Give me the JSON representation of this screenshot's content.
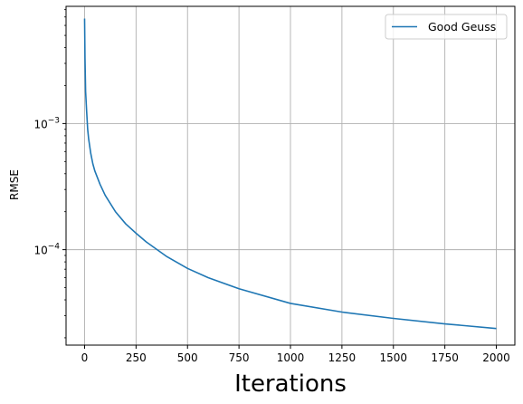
{
  "chart_data": {
    "type": "line",
    "title": "",
    "xlabel": "Iterations",
    "ylabel": "RMSE",
    "yscale": "log",
    "xlim": [
      -90,
      2090
    ],
    "ylim": [
      1.75e-05,
      0.0085
    ],
    "grid": true,
    "legend": {
      "placement": "upper-right",
      "entries": [
        "Good Geuss"
      ]
    },
    "colors": {
      "series": "#1f77b4",
      "grid": "#b0b0b0"
    },
    "x_ticks": [
      0,
      250,
      500,
      750,
      1000,
      1250,
      1500,
      1750,
      2000
    ],
    "x_tick_labels": [
      "0",
      "250",
      "500",
      "750",
      "1000",
      "1250",
      "1500",
      "1750",
      "2000"
    ],
    "y_ticks": [
      0.0001,
      0.001
    ],
    "y_tick_labels": [
      "10^-4",
      "10^-3"
    ],
    "series": [
      {
        "name": "Good Geuss",
        "x": [
          0,
          2,
          5,
          10,
          15,
          20,
          30,
          40,
          50,
          75,
          100,
          150,
          200,
          250,
          300,
          400,
          500,
          600,
          750,
          1000,
          1250,
          1500,
          1750,
          2000
        ],
        "y": [
          0.0068,
          0.0033,
          0.0018,
          0.00125,
          0.0009,
          0.00075,
          0.00058,
          0.00048,
          0.00042,
          0.00033,
          0.00027,
          0.0002,
          0.00016,
          0.000135,
          0.000115,
          8.8e-05,
          7.1e-05,
          6e-05,
          4.9e-05,
          3.75e-05,
          3.2e-05,
          2.85e-05,
          2.58e-05,
          2.37e-05
        ]
      }
    ]
  }
}
